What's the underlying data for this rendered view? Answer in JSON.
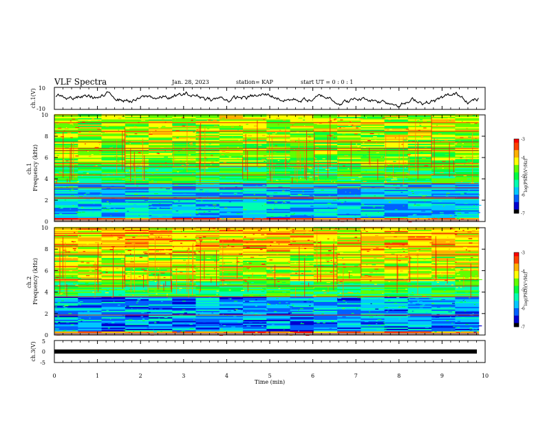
{
  "header": {
    "title": "VLF Spectra",
    "date": "Jan. 28, 2023",
    "station": "station= KAP",
    "start": "start  UT =   0 : 0 : 1"
  },
  "chart_data": [
    {
      "type": "line",
      "name": "ch1-waveform",
      "ylabel": "ch.1(V)",
      "ylim": [
        -10,
        10
      ],
      "yticks": [
        "10",
        "-10"
      ],
      "series": [
        {
          "name": "ch.1 amplitude (V)",
          "x_min": [
            0,
            9.85
          ],
          "approx": "noisy trace fluctuating roughly between -8 and +8 V"
        }
      ]
    },
    {
      "type": "heatmap",
      "name": "ch1-spectrogram",
      "ylabel": "ch.1\nFrequency (kHz)",
      "ylabel_lines": [
        "ch.1",
        "Frequency (kHz)"
      ],
      "ylim": [
        0,
        10
      ],
      "yticks": [
        "0",
        "2",
        "4",
        "6",
        "8",
        "10"
      ],
      "xlim": [
        0,
        9.85
      ],
      "colorbar": {
        "label": "log(PSD)(V²/Hz)",
        "range": [
          -7,
          -3
        ],
        "ticks": [
          "-3",
          "-4",
          "-5",
          "-6",
          "-7"
        ]
      },
      "bands": [
        {
          "range": [
            0,
            0.3
          ],
          "level": -3.5
        },
        {
          "range": [
            0.3,
            3.6
          ],
          "level": -5.8
        },
        {
          "range": [
            3.6,
            5.2
          ],
          "level": -5.0
        },
        {
          "range": [
            5.2,
            7.5
          ],
          "level": -4.6
        },
        {
          "range": [
            7.5,
            10
          ],
          "level": -4.4
        }
      ],
      "lines_khz": [
        2.2,
        2.3,
        3.2,
        3.6,
        4.4,
        5.2,
        5.5,
        6.7,
        6.9,
        7.5,
        8.5,
        9.3
      ]
    },
    {
      "type": "heatmap",
      "name": "ch2-spectrogram",
      "ylabel": "ch.2\nFrequency (kHz)",
      "ylabel_lines": [
        "ch.2",
        "Frequency (kHz)"
      ],
      "ylim": [
        0,
        10
      ],
      "yticks": [
        "0",
        "2",
        "4",
        "6",
        "8",
        "10"
      ],
      "xlim": [
        0,
        9.85
      ],
      "colorbar": {
        "label": "log(PSD)(V²/Hz)",
        "range": [
          -7,
          -3
        ],
        "ticks": [
          "-3",
          "-4",
          "-5",
          "-6",
          "-7"
        ]
      },
      "bands": [
        {
          "range": [
            0,
            0.3
          ],
          "level": -3.6
        },
        {
          "range": [
            0.3,
            3.5
          ],
          "level": -6.0
        },
        {
          "range": [
            3.5,
            5.0
          ],
          "level": -5.0
        },
        {
          "range": [
            5.0,
            7.5
          ],
          "level": -4.4
        },
        {
          "range": [
            7.5,
            10
          ],
          "level": -4.0
        }
      ],
      "lines_khz": [
        1.9,
        3.6,
        4.6,
        5.2,
        6.4,
        7.5,
        8.3,
        9.5
      ]
    },
    {
      "type": "line",
      "name": "ch3-waveform",
      "ylabel": "ch.3(V)",
      "ylim": [
        -5,
        5
      ],
      "yticks": [
        "5",
        "0",
        "-5"
      ],
      "series": [
        {
          "name": "ch.3 amplitude (V)",
          "approx": "flat thick trace near 0 V"
        }
      ]
    }
  ],
  "x_axis": {
    "label": "Time (min)",
    "range": [
      0,
      10
    ],
    "ticks": [
      "0",
      "1",
      "2",
      "3",
      "4",
      "5",
      "6",
      "7",
      "8",
      "9",
      "10"
    ]
  },
  "colors": {
    "colormap": [
      "#000000",
      "#0000d0",
      "#0060ff",
      "#00c8ff",
      "#00ffb0",
      "#00ff40",
      "#60ff00",
      "#ffff00",
      "#ffb000",
      "#ff4000",
      "#ff0000",
      "#ffe8e8"
    ]
  }
}
